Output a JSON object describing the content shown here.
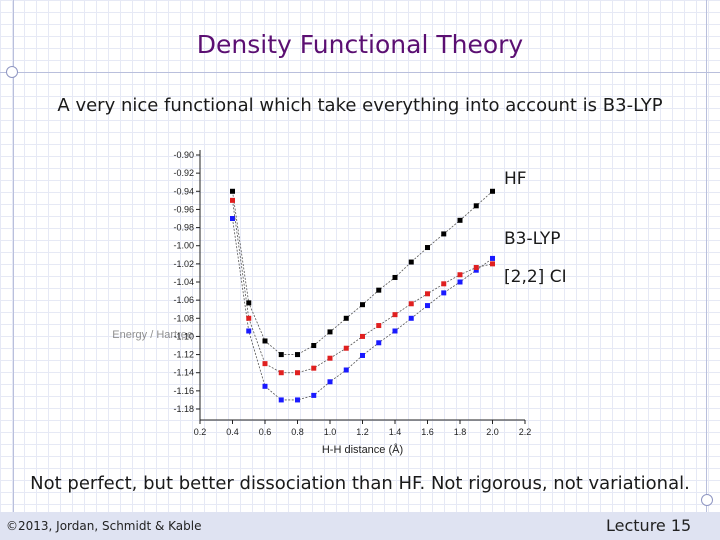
{
  "slide": {
    "title": "Density Functional Theory",
    "subtitle": "A very nice functional which take everything into account is B3-LYP",
    "bottom_text": "Not perfect, but better dissociation than HF. Not rigorous, not variational.",
    "footer_left": "©2013, Jordan, Schmidt & Kable",
    "footer_right": "Lecture 15"
  },
  "chart_data": {
    "type": "line",
    "title": "",
    "xlabel": "H-H distance (Å)",
    "ylabel": "Energy / Hartree",
    "xlim": [
      0.2,
      2.2
    ],
    "ylim": [
      -1.19,
      -0.9
    ],
    "x_ticks": [
      "0.2",
      "0.4",
      "0.6",
      "0.8",
      "1.0",
      "1.2",
      "1.4",
      "1.6",
      "1.8",
      "2.0",
      "2.2"
    ],
    "y_ticks": [
      "-0.90",
      "-0.92",
      "-0.94",
      "-0.96",
      "-0.98",
      "-1.00",
      "-1.02",
      "-1.04",
      "-1.06",
      "-1.08",
      "-1.10",
      "-1.12",
      "-1.14",
      "-1.16",
      "-1.18"
    ],
    "grid": false,
    "legend_placement": "right",
    "series": [
      {
        "name": "HF",
        "color": "#000000",
        "x": [
          0.4,
          0.5,
          0.6,
          0.7,
          0.8,
          0.9,
          1.0,
          1.1,
          1.2,
          1.3,
          1.4,
          1.5,
          1.6,
          1.7,
          1.8,
          1.9,
          2.0
        ],
        "y": [
          -0.94,
          -1.063,
          -1.105,
          -1.12,
          -1.12,
          -1.11,
          -1.095,
          -1.08,
          -1.065,
          -1.049,
          -1.035,
          -1.018,
          -1.002,
          -0.987,
          -0.972,
          -0.956,
          -0.94
        ]
      },
      {
        "name": "B3-LYP",
        "color": "#1a1aff",
        "x": [
          0.4,
          0.5,
          0.6,
          0.7,
          0.8,
          0.9,
          1.0,
          1.1,
          1.2,
          1.3,
          1.4,
          1.5,
          1.6,
          1.7,
          1.8,
          1.9,
          2.0
        ],
        "y": [
          -0.97,
          -1.094,
          -1.155,
          -1.17,
          -1.17,
          -1.165,
          -1.15,
          -1.137,
          -1.121,
          -1.107,
          -1.094,
          -1.08,
          -1.066,
          -1.052,
          -1.04,
          -1.027,
          -1.014
        ]
      },
      {
        "name": "[2,2] CI",
        "color": "#e02020",
        "x": [
          0.4,
          0.5,
          0.6,
          0.7,
          0.8,
          0.9,
          1.0,
          1.1,
          1.2,
          1.3,
          1.4,
          1.5,
          1.6,
          1.7,
          1.8,
          1.9,
          2.0
        ],
        "y": [
          -0.95,
          -1.08,
          -1.13,
          -1.14,
          -1.14,
          -1.135,
          -1.124,
          -1.113,
          -1.1,
          -1.088,
          -1.076,
          -1.064,
          -1.053,
          -1.042,
          -1.032,
          -1.024,
          -1.02
        ]
      }
    ]
  }
}
